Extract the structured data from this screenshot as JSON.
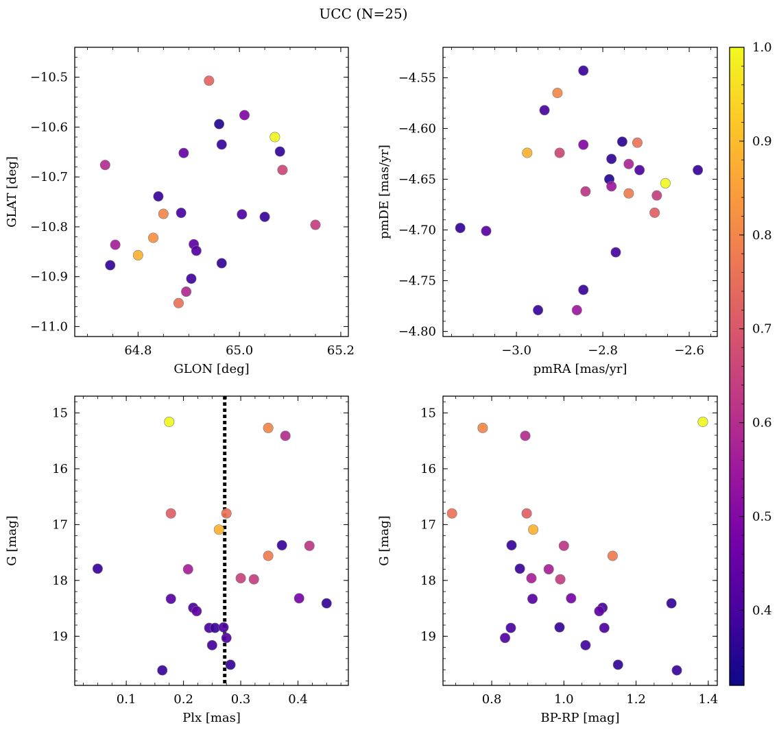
{
  "title": "UCC (N=25)",
  "colorbar": {
    "vmin": 0.32,
    "vmax": 1.0,
    "ticks": [
      0.4,
      0.5,
      0.6,
      0.7,
      0.8,
      0.9,
      1.0
    ],
    "tick_labels": [
      "0.4",
      "0.5",
      "0.6",
      "0.7",
      "0.8",
      "0.9",
      "1.0"
    ],
    "colormap": "plasma",
    "stops": [
      "#0d0887",
      "#46039f",
      "#7201a8",
      "#9c179e",
      "#bd3786",
      "#d8576b",
      "#ed7953",
      "#fb9f3a",
      "#fdca26",
      "#f0f921"
    ]
  },
  "chart_data": [
    {
      "type": "scatter",
      "name": "glon-glat",
      "xlabel": "GLON [deg]",
      "ylabel": "GLAT [deg]",
      "xlim": [
        64.675,
        65.215
      ],
      "ylim": [
        -11.02,
        -10.44
      ],
      "xticks": [
        64.8,
        65.0,
        65.2
      ],
      "xtick_labels": [
        "64.8",
        "65.0",
        "65.2"
      ],
      "yticks": [
        -10.5,
        -10.6,
        -10.7,
        -10.8,
        -10.9,
        -11.0
      ],
      "ytick_labels": [
        "−10.5",
        "−10.6",
        "−10.7",
        "−10.8",
        "−10.9",
        "−11.0"
      ],
      "points": [
        {
          "x": 64.94,
          "y": -10.507,
          "c": 0.73
        },
        {
          "x": 65.01,
          "y": -10.576,
          "c": 0.5
        },
        {
          "x": 64.96,
          "y": -10.594,
          "c": 0.35
        },
        {
          "x": 65.07,
          "y": -10.62,
          "c": 1.0
        },
        {
          "x": 64.965,
          "y": -10.635,
          "c": 0.38
        },
        {
          "x": 65.08,
          "y": -10.649,
          "c": 0.37
        },
        {
          "x": 64.89,
          "y": -10.652,
          "c": 0.45
        },
        {
          "x": 65.085,
          "y": -10.686,
          "c": 0.66
        },
        {
          "x": 64.735,
          "y": -10.676,
          "c": 0.6
        },
        {
          "x": 64.84,
          "y": -10.739,
          "c": 0.38
        },
        {
          "x": 64.85,
          "y": -10.774,
          "c": 0.8
        },
        {
          "x": 64.885,
          "y": -10.772,
          "c": 0.4
        },
        {
          "x": 65.005,
          "y": -10.775,
          "c": 0.41
        },
        {
          "x": 65.05,
          "y": -10.78,
          "c": 0.38
        },
        {
          "x": 65.15,
          "y": -10.796,
          "c": 0.64
        },
        {
          "x": 64.83,
          "y": -10.822,
          "c": 0.82
        },
        {
          "x": 64.755,
          "y": -10.836,
          "c": 0.57
        },
        {
          "x": 64.91,
          "y": -10.835,
          "c": 0.44
        },
        {
          "x": 64.915,
          "y": -10.848,
          "c": 0.42
        },
        {
          "x": 64.8,
          "y": -10.857,
          "c": 0.88
        },
        {
          "x": 64.965,
          "y": -10.873,
          "c": 0.37
        },
        {
          "x": 64.745,
          "y": -10.877,
          "c": 0.37
        },
        {
          "x": 64.905,
          "y": -10.904,
          "c": 0.39
        },
        {
          "x": 64.895,
          "y": -10.93,
          "c": 0.59
        },
        {
          "x": 64.88,
          "y": -10.953,
          "c": 0.76
        }
      ]
    },
    {
      "type": "scatter",
      "name": "pmra-pmde",
      "xlabel": "pmRA [mas/yr]",
      "ylabel": "pmDE [mas/yr]",
      "xlim": [
        -3.17,
        -2.535
      ],
      "ylim": [
        -4.805,
        -4.52
      ],
      "xticks": [
        -3.0,
        -2.8,
        -2.6
      ],
      "xtick_labels": [
        "−3.0",
        "−2.8",
        "−2.6"
      ],
      "yticks": [
        -4.55,
        -4.6,
        -4.65,
        -4.7,
        -4.75,
        -4.8
      ],
      "ytick_labels": [
        "−4.55",
        "−4.60",
        "−4.65",
        "−4.70",
        "−4.75",
        "−4.80"
      ],
      "points": [
        {
          "x": -2.845,
          "y": -4.543,
          "c": 0.38
        },
        {
          "x": -2.905,
          "y": -4.565,
          "c": 0.8
        },
        {
          "x": -2.935,
          "y": -4.582,
          "c": 0.4
        },
        {
          "x": -2.755,
          "y": -4.613,
          "c": 0.36
        },
        {
          "x": -2.72,
          "y": -4.614,
          "c": 0.76
        },
        {
          "x": -2.845,
          "y": -4.616,
          "c": 0.5
        },
        {
          "x": -2.975,
          "y": -4.624,
          "c": 0.88
        },
        {
          "x": -2.9,
          "y": -4.624,
          "c": 0.66
        },
        {
          "x": -2.78,
          "y": -4.63,
          "c": 0.37
        },
        {
          "x": -2.74,
          "y": -4.635,
          "c": 0.58
        },
        {
          "x": -2.715,
          "y": -4.641,
          "c": 0.41
        },
        {
          "x": -2.58,
          "y": -4.641,
          "c": 0.38
        },
        {
          "x": -2.655,
          "y": -4.654,
          "c": 1.0
        },
        {
          "x": -2.785,
          "y": -4.65,
          "c": 0.35
        },
        {
          "x": -2.78,
          "y": -4.657,
          "c": 0.55
        },
        {
          "x": -2.84,
          "y": -4.662,
          "c": 0.62
        },
        {
          "x": -2.74,
          "y": -4.664,
          "c": 0.78
        },
        {
          "x": -2.675,
          "y": -4.666,
          "c": 0.64
        },
        {
          "x": -2.68,
          "y": -4.683,
          "c": 0.72
        },
        {
          "x": -3.13,
          "y": -4.698,
          "c": 0.37
        },
        {
          "x": -3.07,
          "y": -4.701,
          "c": 0.43
        },
        {
          "x": -2.77,
          "y": -4.722,
          "c": 0.4
        },
        {
          "x": -2.845,
          "y": -4.759,
          "c": 0.38
        },
        {
          "x": -2.95,
          "y": -4.779,
          "c": 0.38
        },
        {
          "x": -2.86,
          "y": -4.779,
          "c": 0.55
        }
      ]
    },
    {
      "type": "scatter",
      "name": "plx-g",
      "xlabel": "Plx [mas]",
      "ylabel": "G [mag]",
      "xlim": [
        0.01,
        0.488
      ],
      "ylim": [
        19.88,
        14.7
      ],
      "xticks": [
        0.1,
        0.2,
        0.3,
        0.4
      ],
      "xtick_labels": [
        "0.1",
        "0.2",
        "0.3",
        "0.4"
      ],
      "yticks": [
        15,
        16,
        17,
        18,
        19
      ],
      "ytick_labels": [
        "15",
        "16",
        "17",
        "18",
        "19"
      ],
      "vline": 0.272,
      "points": [
        {
          "x": 0.175,
          "y": 15.16,
          "c": 1.0
        },
        {
          "x": 0.348,
          "y": 15.27,
          "c": 0.8
        },
        {
          "x": 0.378,
          "y": 15.41,
          "c": 0.6
        },
        {
          "x": 0.178,
          "y": 16.8,
          "c": 0.72
        },
        {
          "x": 0.275,
          "y": 16.8,
          "c": 0.76
        },
        {
          "x": 0.262,
          "y": 17.09,
          "c": 0.88
        },
        {
          "x": 0.372,
          "y": 17.37,
          "c": 0.38
        },
        {
          "x": 0.42,
          "y": 17.38,
          "c": 0.62
        },
        {
          "x": 0.348,
          "y": 17.56,
          "c": 0.78
        },
        {
          "x": 0.05,
          "y": 17.79,
          "c": 0.38
        },
        {
          "x": 0.208,
          "y": 17.8,
          "c": 0.57
        },
        {
          "x": 0.3,
          "y": 17.96,
          "c": 0.65
        },
        {
          "x": 0.323,
          "y": 17.98,
          "c": 0.64
        },
        {
          "x": 0.178,
          "y": 18.33,
          "c": 0.43
        },
        {
          "x": 0.402,
          "y": 18.32,
          "c": 0.48
        },
        {
          "x": 0.45,
          "y": 18.41,
          "c": 0.37
        },
        {
          "x": 0.217,
          "y": 18.49,
          "c": 0.4
        },
        {
          "x": 0.223,
          "y": 18.55,
          "c": 0.44
        },
        {
          "x": 0.245,
          "y": 18.85,
          "c": 0.4
        },
        {
          "x": 0.255,
          "y": 18.85,
          "c": 0.38
        },
        {
          "x": 0.27,
          "y": 18.84,
          "c": 0.41
        },
        {
          "x": 0.275,
          "y": 19.03,
          "c": 0.42
        },
        {
          "x": 0.25,
          "y": 19.16,
          "c": 0.39
        },
        {
          "x": 0.282,
          "y": 19.51,
          "c": 0.37
        },
        {
          "x": 0.163,
          "y": 19.61,
          "c": 0.38
        }
      ]
    },
    {
      "type": "scatter",
      "name": "bprp-g",
      "xlabel": "BP-RP [mag]",
      "ylabel": "G [mag]",
      "xlim": [
        0.665,
        1.425
      ],
      "ylim": [
        19.88,
        14.7
      ],
      "xticks": [
        0.8,
        1.0,
        1.2,
        1.4
      ],
      "xtick_labels": [
        "0.8",
        "1.0",
        "1.2",
        "1.4"
      ],
      "yticks": [
        15,
        16,
        17,
        18,
        19
      ],
      "ytick_labels": [
        "15",
        "16",
        "17",
        "18",
        "19"
      ],
      "points": [
        {
          "x": 1.385,
          "y": 15.16,
          "c": 1.0
        },
        {
          "x": 0.775,
          "y": 15.27,
          "c": 0.8
        },
        {
          "x": 0.893,
          "y": 15.41,
          "c": 0.6
        },
        {
          "x": 0.69,
          "y": 16.8,
          "c": 0.76
        },
        {
          "x": 0.897,
          "y": 16.8,
          "c": 0.72
        },
        {
          "x": 0.915,
          "y": 17.09,
          "c": 0.88
        },
        {
          "x": 0.855,
          "y": 17.37,
          "c": 0.38
        },
        {
          "x": 1.0,
          "y": 17.38,
          "c": 0.62
        },
        {
          "x": 1.135,
          "y": 17.56,
          "c": 0.78
        },
        {
          "x": 0.878,
          "y": 17.79,
          "c": 0.38
        },
        {
          "x": 0.958,
          "y": 17.8,
          "c": 0.57
        },
        {
          "x": 0.91,
          "y": 17.96,
          "c": 0.57
        },
        {
          "x": 0.99,
          "y": 17.98,
          "c": 0.64
        },
        {
          "x": 0.913,
          "y": 18.33,
          "c": 0.43
        },
        {
          "x": 1.02,
          "y": 18.32,
          "c": 0.48
        },
        {
          "x": 1.298,
          "y": 18.41,
          "c": 0.37
        },
        {
          "x": 1.107,
          "y": 18.49,
          "c": 0.4
        },
        {
          "x": 1.098,
          "y": 18.55,
          "c": 0.44
        },
        {
          "x": 0.853,
          "y": 18.85,
          "c": 0.4
        },
        {
          "x": 0.988,
          "y": 18.84,
          "c": 0.38
        },
        {
          "x": 1.112,
          "y": 18.85,
          "c": 0.41
        },
        {
          "x": 0.837,
          "y": 19.03,
          "c": 0.42
        },
        {
          "x": 1.06,
          "y": 19.16,
          "c": 0.39
        },
        {
          "x": 1.15,
          "y": 19.51,
          "c": 0.37
        },
        {
          "x": 1.313,
          "y": 19.61,
          "c": 0.38
        }
      ]
    }
  ]
}
